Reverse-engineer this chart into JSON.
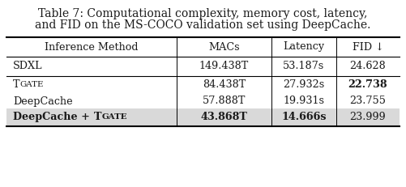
{
  "title_line1": "Table 7: Computational complexity, memory cost, latency,",
  "title_line2": "and FID on the MS-COCO validation set using DeepCache.",
  "col_headers": [
    "Inference Method",
    "MACs",
    "Latency",
    "FID ↓"
  ],
  "rows": [
    {
      "method": "SDXL",
      "macs": "149.438T",
      "latency": "53.187s",
      "fid": "24.628",
      "bold_method": false,
      "bold_macs": false,
      "bold_latency": false,
      "bold_fid": false,
      "highlight": false
    },
    {
      "method": "TGATE",
      "macs": "84.438T",
      "latency": "27.932s",
      "fid": "22.738",
      "bold_method": false,
      "bold_macs": false,
      "bold_latency": false,
      "bold_fid": true,
      "highlight": false
    },
    {
      "method": "DeepCache",
      "macs": "57.888T",
      "latency": "19.931s",
      "fid": "23.755",
      "bold_method": false,
      "bold_macs": false,
      "bold_latency": false,
      "bold_fid": false,
      "highlight": false
    },
    {
      "method": "DeepCache + TGATE",
      "macs": "43.868T",
      "latency": "14.666s",
      "fid": "23.999",
      "bold_method": true,
      "bold_macs": true,
      "bold_latency": true,
      "bold_fid": false,
      "highlight": true
    }
  ],
  "bg_color": "#ffffff",
  "highlight_color": "#d9d9d9",
  "text_color": "#1a1a1a",
  "title_fontsize": 10.0,
  "table_fontsize": 9.2
}
